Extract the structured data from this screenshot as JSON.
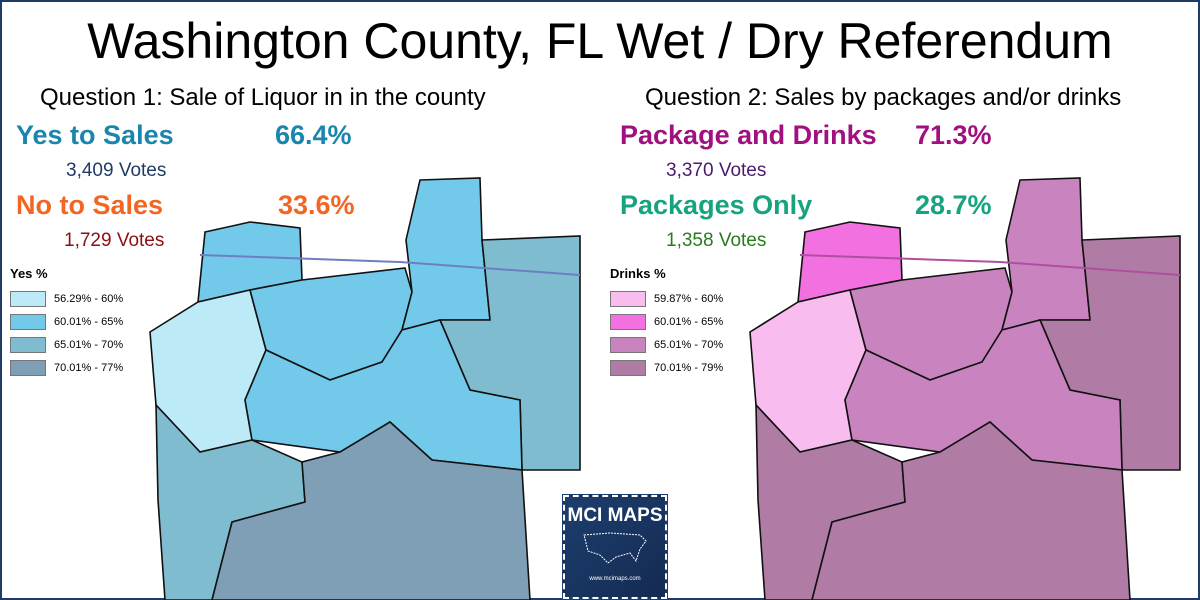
{
  "title": "Washington County, FL Wet / Dry Referendum",
  "question1": {
    "heading": "Question 1:  Sale of Liquor in in the county",
    "yes": {
      "label": "Yes to Sales",
      "pct": "66.4%",
      "votes": "3,409 Votes",
      "color": "#1a86ad"
    },
    "no": {
      "label": "No to Sales",
      "pct": "33.6%",
      "votes": "1,729 Votes",
      "color": "#f26522"
    },
    "legend": {
      "title": "Yes  %",
      "items": [
        {
          "label": "56.29% - 60%",
          "color": "#bdeaf7"
        },
        {
          "label": "60.01% - 65%",
          "color": "#72c9ea"
        },
        {
          "label": "65.01% - 70%",
          "color": "#7fbccf"
        },
        {
          "label": "70.01% - 77%",
          "color": "#7e9fb5"
        }
      ]
    }
  },
  "question2": {
    "heading": "Question 2: Sales by packages and/or drinks",
    "drinks": {
      "label": "Package and Drinks",
      "pct": "71.3%",
      "votes": "3,370 Votes",
      "color": "#a0107f"
    },
    "packages": {
      "label": "Packages Only",
      "pct": "28.7%",
      "votes": "1,358 Votes",
      "color": "#17a37f"
    },
    "legend": {
      "title": "Drinks %",
      "items": [
        {
          "label": "59.87% - 60%",
          "color": "#f8bdee"
        },
        {
          "label": "60.01% - 65%",
          "color": "#f270e0"
        },
        {
          "label": "65.01% - 70%",
          "color": "#c984c0"
        },
        {
          "label": "70.01% - 79%",
          "color": "#b07ba4"
        }
      ]
    }
  },
  "precinct_classes": {
    "q1": [
      1,
      0,
      1,
      1,
      2,
      1,
      2,
      3
    ],
    "q2": [
      1,
      0,
      2,
      2,
      3,
      2,
      3,
      3
    ]
  },
  "logo": {
    "name": "MCI MAPS",
    "url": "www.mcimaps.com"
  }
}
